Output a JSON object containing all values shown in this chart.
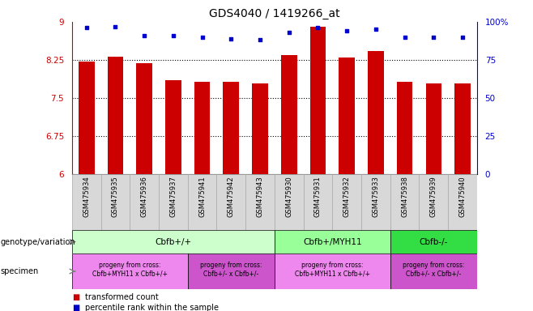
{
  "title": "GDS4040 / 1419266_at",
  "samples": [
    "GSM475934",
    "GSM475935",
    "GSM475936",
    "GSM475937",
    "GSM475941",
    "GSM475942",
    "GSM475943",
    "GSM475930",
    "GSM475931",
    "GSM475932",
    "GSM475933",
    "GSM475938",
    "GSM475939",
    "GSM475940"
  ],
  "bar_values": [
    8.22,
    8.32,
    8.19,
    7.85,
    7.82,
    7.82,
    7.79,
    8.35,
    8.9,
    8.3,
    8.42,
    7.82,
    7.79,
    7.79
  ],
  "dot_values": [
    96,
    97,
    91,
    91,
    90,
    89,
    88,
    93,
    96,
    94,
    95,
    90,
    90,
    90
  ],
  "bar_color": "#cc0000",
  "dot_color": "#0000cc",
  "ylim_left": [
    6,
    9
  ],
  "ylim_right": [
    0,
    100
  ],
  "yticks_left": [
    6,
    6.75,
    7.5,
    8.25,
    9
  ],
  "yticks_left_labels": [
    "6",
    "6.75",
    "7.5",
    "8.25",
    "9"
  ],
  "yticks_right": [
    0,
    25,
    50,
    75,
    100
  ],
  "yticks_right_labels": [
    "0",
    "25",
    "50",
    "75",
    "100%"
  ],
  "hlines": [
    6.75,
    7.5,
    8.25
  ],
  "genotype_groups": [
    {
      "label": "Cbfb+/+",
      "start": 0,
      "end": 7,
      "color": "#ccffcc"
    },
    {
      "label": "Cbfb+/MYH11",
      "start": 7,
      "end": 11,
      "color": "#99ff99"
    },
    {
      "label": "Cbfb-/-",
      "start": 11,
      "end": 14,
      "color": "#33dd44"
    }
  ],
  "specimen_groups": [
    {
      "label": "progeny from cross:\nCbfb+MYH11 x Cbfb+/+",
      "start": 0,
      "end": 4,
      "color": "#ee88ee"
    },
    {
      "label": "progeny from cross:\nCbfb+/- x Cbfb+/-",
      "start": 4,
      "end": 7,
      "color": "#cc55cc"
    },
    {
      "label": "progeny from cross:\nCbfb+MYH11 x Cbfb+/+",
      "start": 7,
      "end": 11,
      "color": "#ee88ee"
    },
    {
      "label": "progeny from cross:\nCbfb+/- x Cbfb+/-",
      "start": 11,
      "end": 14,
      "color": "#cc55cc"
    }
  ],
  "legend_items": [
    {
      "label": "transformed count",
      "color": "#cc0000"
    },
    {
      "label": "percentile rank within the sample",
      "color": "#0000cc"
    }
  ],
  "tick_bg_color": "#d8d8d8",
  "tick_border_color": "#aaaaaa"
}
